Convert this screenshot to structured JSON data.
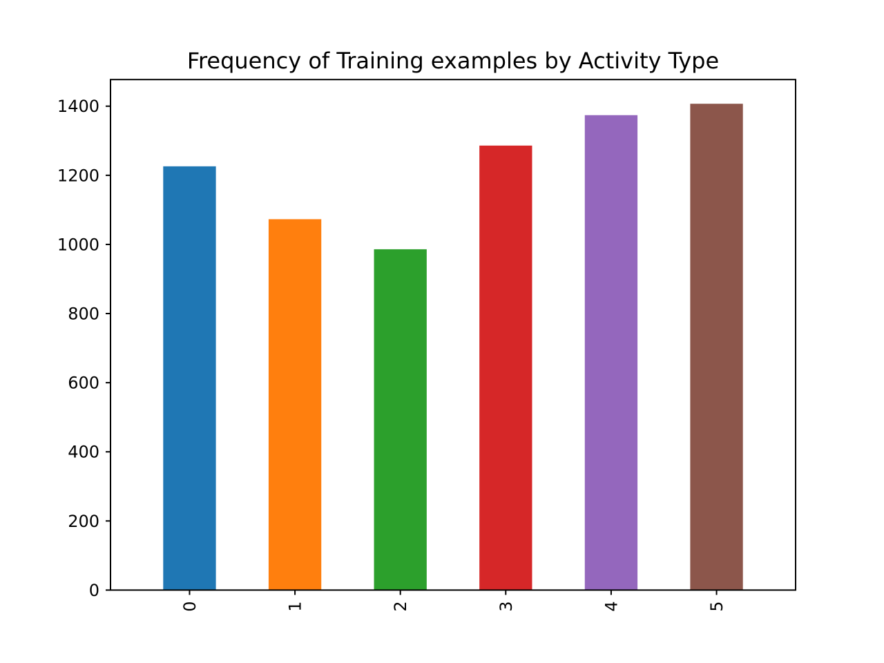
{
  "chart_data": {
    "type": "bar",
    "title": "Frequency of Training examples by Activity Type",
    "xlabel": "",
    "ylabel": "",
    "categories": [
      "0",
      "1",
      "2",
      "3",
      "4",
      "5"
    ],
    "values": [
      1226,
      1073,
      986,
      1286,
      1374,
      1407
    ],
    "colors": [
      "#1f77b4",
      "#ff7f0e",
      "#2ca02c",
      "#d62728",
      "#9467bd",
      "#8c564b"
    ],
    "ylim": [
      0,
      1477
    ],
    "yticks": [
      0,
      200,
      400,
      600,
      800,
      1000,
      1200,
      1400
    ],
    "x_tick_rotation": "vertical",
    "grid": false,
    "legend": false
  }
}
